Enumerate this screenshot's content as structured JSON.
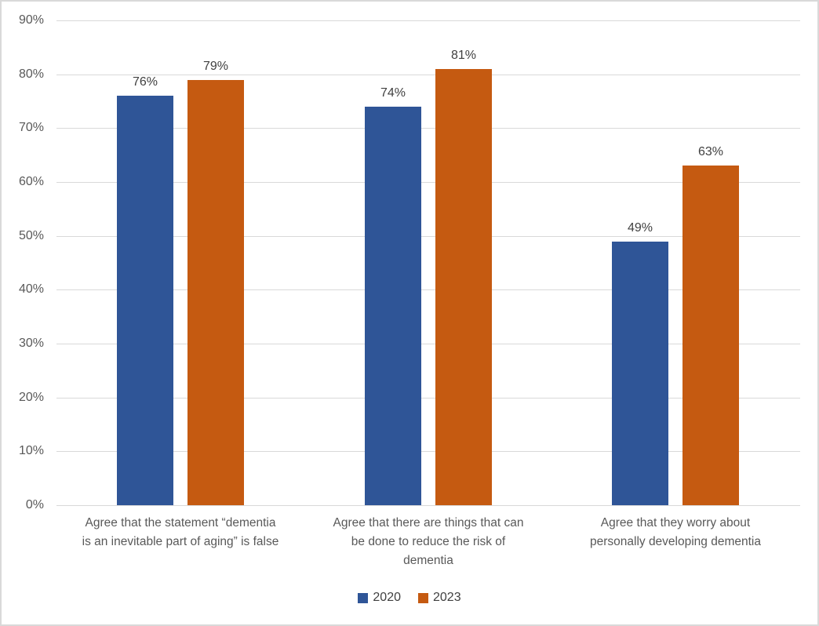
{
  "colors": {
    "series_2020": "#2F5597",
    "series_2023": "#C55A11",
    "gridline": "#D9D9D9",
    "axis_line": "#D9D9D9",
    "axis_text": "#595959",
    "data_label_text": "#404040",
    "frame_border": "#D9D9D9",
    "background": "#FFFFFF"
  },
  "chart_data": {
    "type": "bar",
    "title": "",
    "categories": [
      "Agree that the statement “dementia is an inevitable part of aging” is false",
      "Agree that there are things that can be done to reduce the risk of dementia",
      "Agree that they worry about personally developing dementia"
    ],
    "category_display_lines": [
      [
        "Agree that the statement  “dementia",
        "is an inevitable part of aging” is false"
      ],
      [
        "Agree that there are things that can",
        "be done to reduce the risk of",
        "dementia"
      ],
      [
        "Agree that they worry about",
        "personally developing dementia"
      ]
    ],
    "series": [
      {
        "name": "2020",
        "color": "#2F5597",
        "values": [
          76,
          74,
          49
        ],
        "data_labels": [
          "76%",
          "74%",
          "49%"
        ]
      },
      {
        "name": "2023",
        "color": "#C55A11",
        "values": [
          79,
          81,
          63
        ],
        "data_labels": [
          "79%",
          "81%",
          "63%"
        ]
      }
    ],
    "xlabel": "",
    "ylabel": "",
    "ylim": [
      0,
      90
    ],
    "y_tick_step": 10,
    "y_tick_labels": [
      "0%",
      "10%",
      "20%",
      "30%",
      "40%",
      "50%",
      "60%",
      "70%",
      "80%",
      "90%"
    ],
    "grid": true,
    "legend_position": "bottom",
    "legend_entries": [
      "2020",
      "2023"
    ]
  }
}
